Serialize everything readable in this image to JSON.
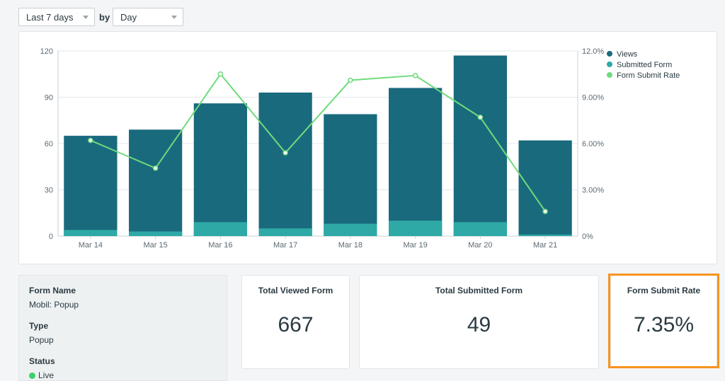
{
  "controls": {
    "range": "Last 7 days",
    "by_label": "by",
    "interval": "Day"
  },
  "colors": {
    "views": "#1a6a7d",
    "submitted": "#2ea9a6",
    "rate": "#6fdb7c",
    "grid": "#e3e7ea",
    "highlight": "#f7941e"
  },
  "chart_data": {
    "type": "bar",
    "categories": [
      "Mar 14",
      "Mar 15",
      "Mar 16",
      "Mar 17",
      "Mar 18",
      "Mar 19",
      "Mar 20",
      "Mar 21"
    ],
    "series": [
      {
        "name": "Views",
        "type": "bar",
        "axis": "left",
        "values": [
          65,
          69,
          86,
          93,
          79,
          96,
          117,
          62
        ]
      },
      {
        "name": "Submitted Form",
        "type": "bar",
        "axis": "left",
        "values": [
          4,
          3,
          9,
          5,
          8,
          10,
          9,
          1
        ]
      },
      {
        "name": "Form Submit Rate",
        "type": "line",
        "axis": "right",
        "values": [
          6.2,
          4.4,
          10.5,
          5.4,
          10.1,
          10.4,
          7.7,
          1.6
        ]
      }
    ],
    "y_left": {
      "min": 0,
      "max": 120,
      "ticks": [
        "0",
        "30",
        "60",
        "90",
        "120"
      ]
    },
    "y_right": {
      "min": 0,
      "max": 12,
      "ticks": [
        "0%",
        "3.00%",
        "6.00%",
        "9.00%",
        "12.0%"
      ]
    },
    "grid": true,
    "legend_position": "top-right"
  },
  "info": {
    "form_name_label": "Form Name",
    "form_name": "Mobil: Popup",
    "type_label": "Type",
    "type": "Popup",
    "status_label": "Status",
    "status": "Live"
  },
  "stats": {
    "viewed_label": "Total Viewed Form",
    "viewed_value": "667",
    "submitted_label": "Total Submitted Form",
    "submitted_value": "49",
    "rate_label": "Form Submit Rate",
    "rate_value": "7.35%"
  }
}
